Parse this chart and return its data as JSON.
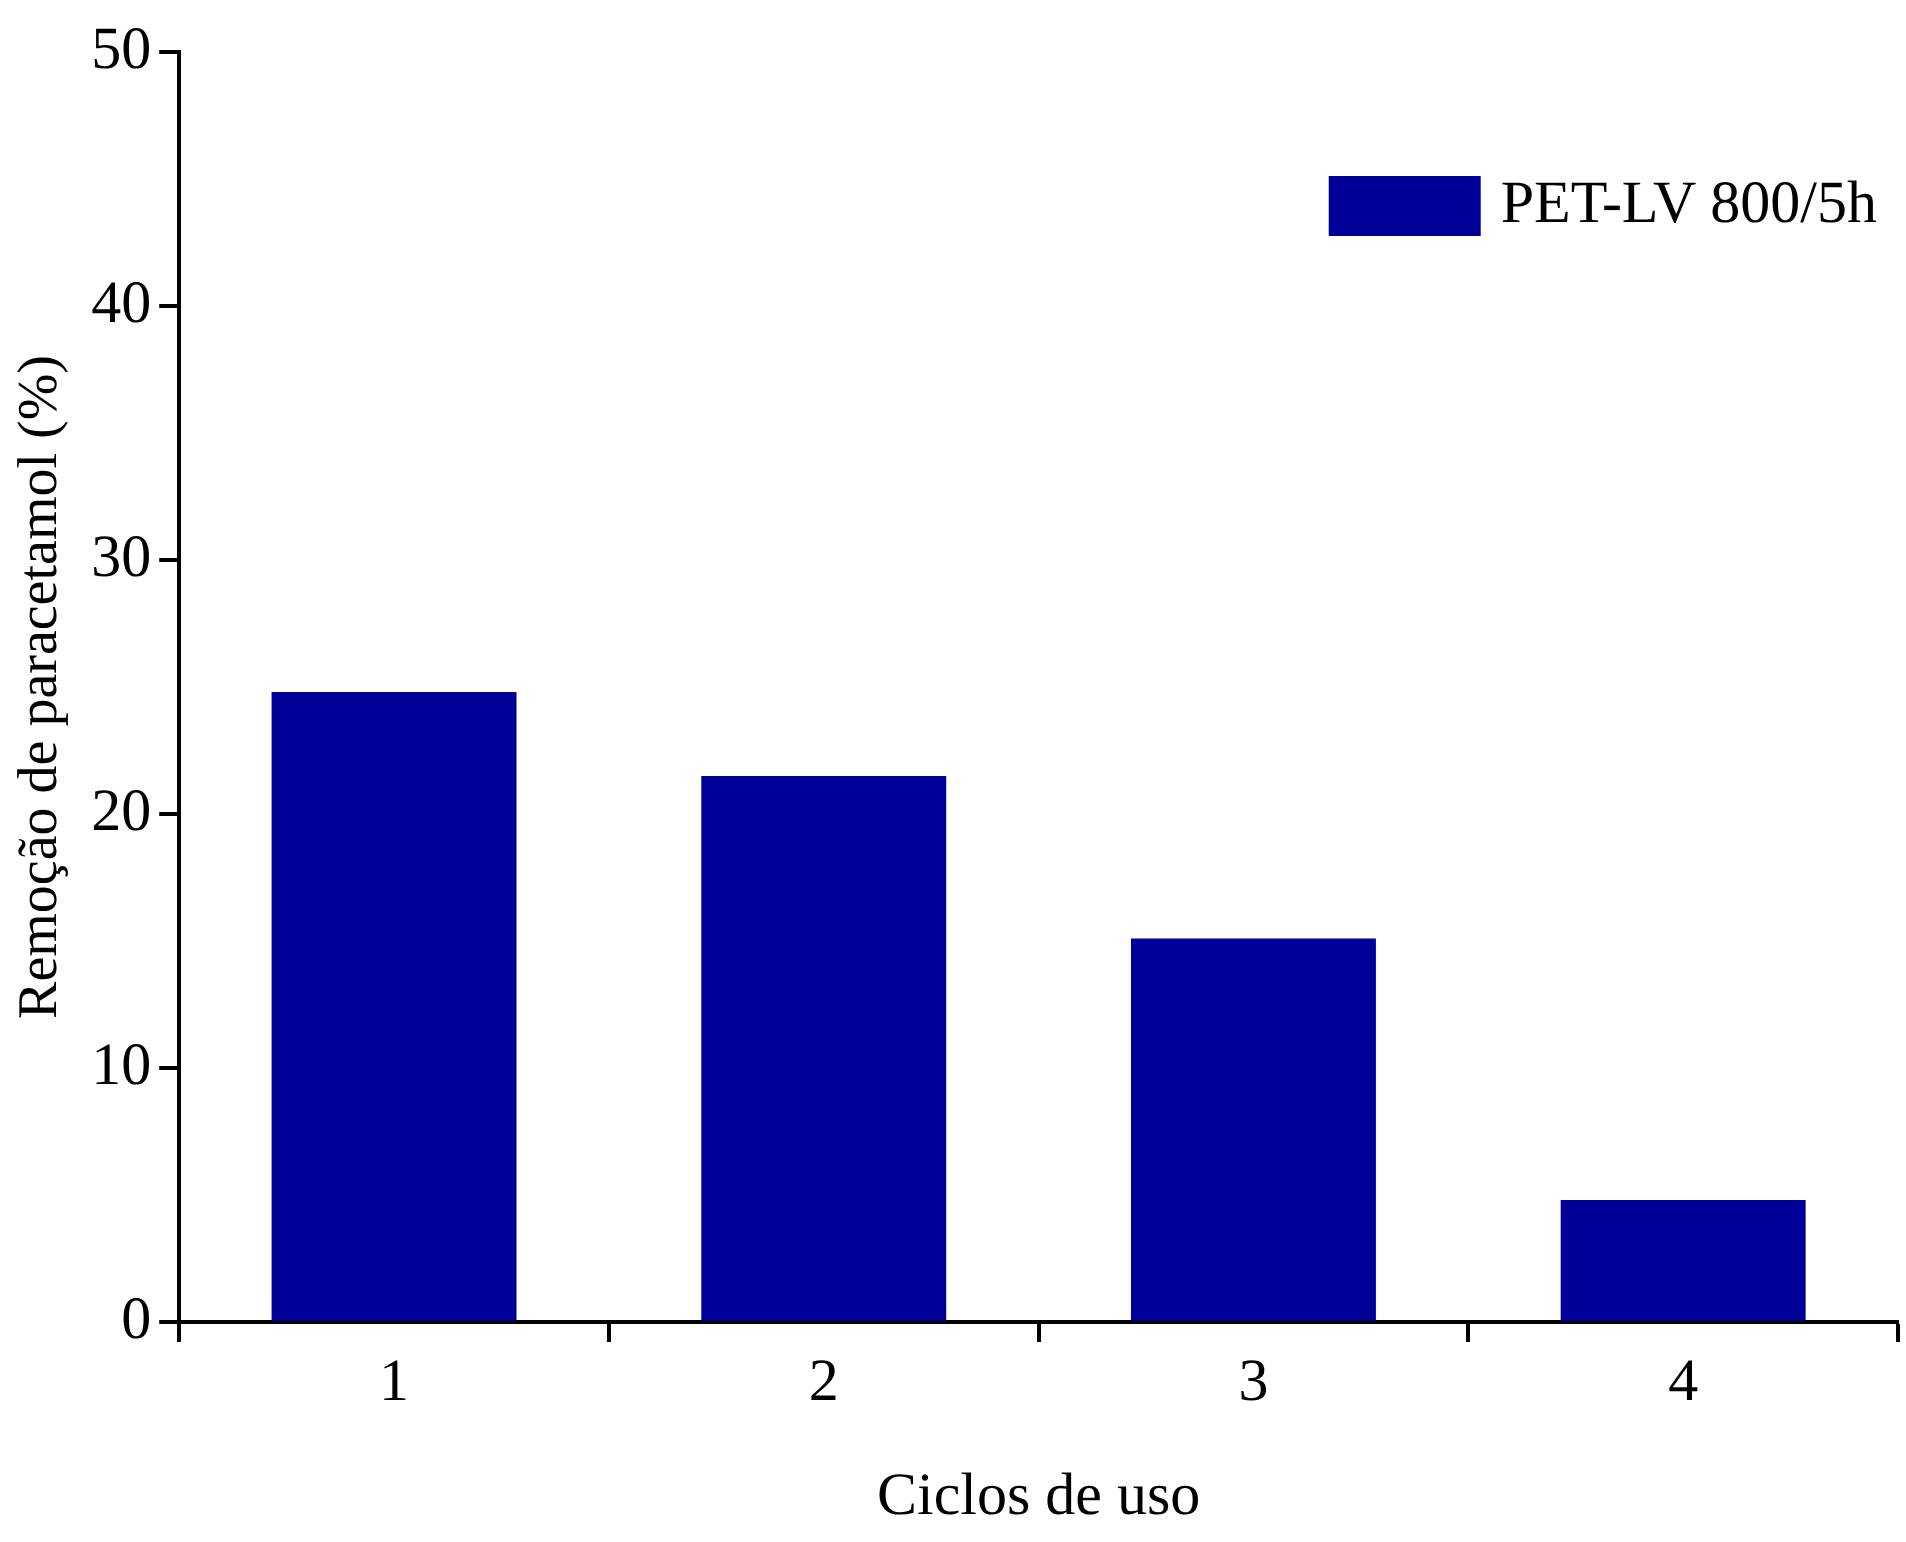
{
  "chart_data": {
    "type": "bar",
    "xlabel": "Ciclos de uso",
    "ylabel": "Remoção de paracetamol (%)",
    "categories": [
      "1",
      "2",
      "3",
      "4"
    ],
    "series": [
      {
        "name": "PET-LV 800/5h",
        "color": "#000099",
        "values": [
          24.8,
          21.5,
          15.1,
          4.8
        ]
      }
    ],
    "ylim": [
      0,
      50
    ],
    "yticks": [
      0,
      10,
      20,
      30,
      40,
      50
    ],
    "grid": false,
    "legend": "top right"
  }
}
